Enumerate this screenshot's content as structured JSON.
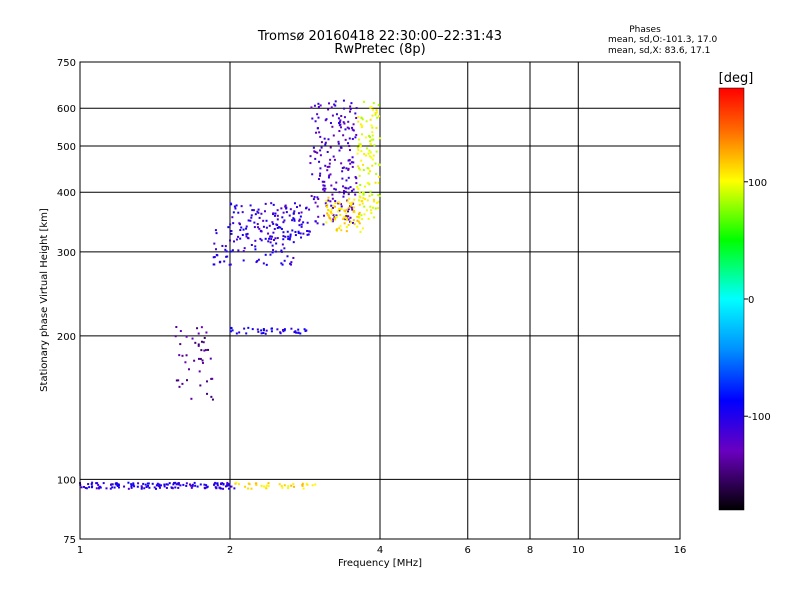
{
  "chart_data": {
    "type": "scatter",
    "title": "Tromsø 20160418 22:30:00–22:31:43",
    "subtitle": "RwPretec (8p)",
    "xlabel": "Frequency [MHz]",
    "ylabel": "Stationary phase Virtual Height [km]",
    "x_scale": "log2",
    "y_scale": "log",
    "xlim": [
      1,
      16
    ],
    "ylim": [
      75,
      750
    ],
    "x_ticks": [
      1,
      2,
      4,
      6,
      8,
      10,
      16
    ],
    "x_tick_labels": [
      "1",
      "2",
      "4",
      "6",
      "8",
      "10",
      "16"
    ],
    "y_ticks": [
      75,
      100,
      200,
      300,
      400,
      500,
      600,
      750
    ],
    "y_tick_labels": [
      "75",
      "100",
      "200",
      "300",
      "400",
      "500",
      "600",
      "750"
    ],
    "grid": true,
    "stats": {
      "heading": "Phases",
      "line_o": "mean, sd,O:-101.3, 17.0",
      "line_x": "mean, sd,X:  83.6, 17.1"
    },
    "colorbar": {
      "label": "[deg]",
      "range": [
        -180,
        180
      ],
      "ticks": [
        100,
        0,
        -100
      ],
      "tick_labels": [
        "100",
        "0",
        "-100"
      ],
      "colormap": "rainbow"
    },
    "series": [
      {
        "x_range": [
          1.0,
          2.05
        ],
        "y": 97,
        "color_value": -105,
        "count": 140
      },
      {
        "x_range": [
          2.05,
          3.0
        ],
        "y": 97,
        "color_value": 110,
        "count": 35
      },
      {
        "x_range": [
          1.55,
          1.85
        ],
        "y": [
          145,
          210
        ],
        "color_value": -140,
        "count": 45
      },
      {
        "x_range": [
          2.0,
          2.85
        ],
        "y": 205,
        "color_value": -100,
        "count": 40
      },
      {
        "x_range": [
          1.85,
          2.7
        ],
        "y": [
          280,
          340
        ],
        "color_value": -105,
        "count": 90
      },
      {
        "x_range": [
          2.0,
          2.9
        ],
        "y": [
          320,
          380
        ],
        "color_value": -110,
        "count": 120
      },
      {
        "x_range": [
          2.9,
          3.6
        ],
        "y": [
          340,
          630
        ],
        "color_value": -120,
        "count": 200
      },
      {
        "x_range": [
          3.6,
          4.0
        ],
        "y": [
          350,
          620
        ],
        "color_value": 95,
        "count": 120
      },
      {
        "x_range": [
          3.1,
          3.7
        ],
        "y": [
          330,
          390
        ],
        "color_value": 110,
        "count": 80
      }
    ]
  }
}
